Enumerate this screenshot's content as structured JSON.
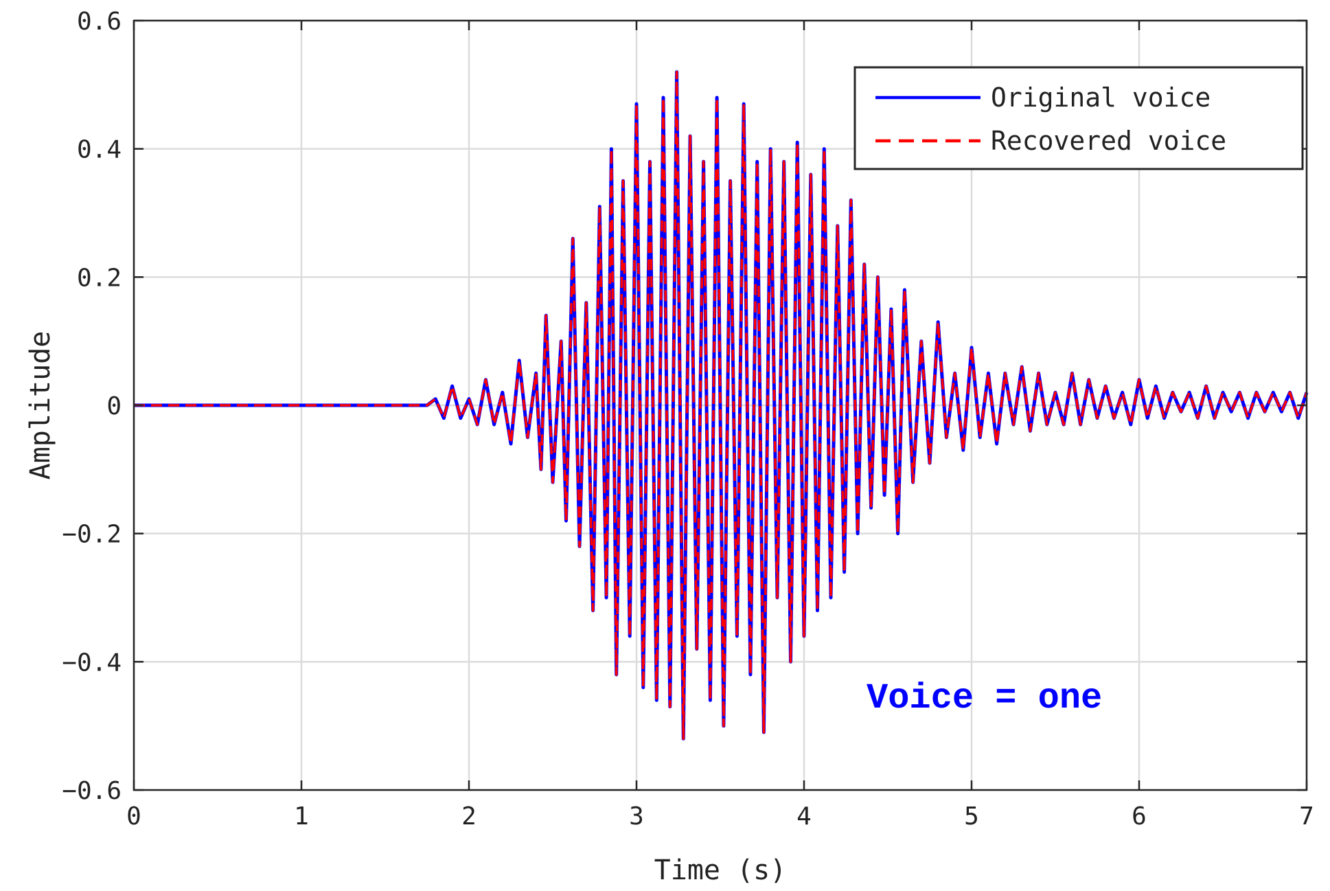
{
  "chart_data": {
    "type": "line",
    "title": "",
    "xlabel": "Time (s)",
    "ylabel": "Amplitude",
    "xlim": [
      0,
      7
    ],
    "ylim": [
      -0.6,
      0.6
    ],
    "x_ticks": [
      "0",
      "1",
      "2",
      "3",
      "4",
      "5",
      "6",
      "7"
    ],
    "y_ticks": [
      "-0.6",
      "-0.4",
      "-0.2",
      "0",
      "0.2",
      "0.4",
      "0.6"
    ],
    "grid": true,
    "legend_position": "top-right",
    "annotation": "Voice = one",
    "annotation_color": "#0000ff",
    "series": [
      {
        "name": "Original voice",
        "color": "#0000ff",
        "style": "solid",
        "x": [
          0,
          1.75,
          1.8,
          1.85,
          1.9,
          1.95,
          2.0,
          2.05,
          2.1,
          2.15,
          2.2,
          2.25,
          2.3,
          2.35,
          2.4,
          2.43,
          2.46,
          2.5,
          2.55,
          2.58,
          2.62,
          2.66,
          2.7,
          2.74,
          2.78,
          2.82,
          2.85,
          2.88,
          2.92,
          2.96,
          3.0,
          3.04,
          3.08,
          3.12,
          3.16,
          3.2,
          3.24,
          3.28,
          3.32,
          3.36,
          3.4,
          3.44,
          3.48,
          3.52,
          3.56,
          3.6,
          3.64,
          3.68,
          3.72,
          3.76,
          3.8,
          3.84,
          3.88,
          3.92,
          3.96,
          4.0,
          4.04,
          4.08,
          4.12,
          4.16,
          4.2,
          4.24,
          4.28,
          4.32,
          4.36,
          4.4,
          4.44,
          4.48,
          4.52,
          4.56,
          4.6,
          4.65,
          4.7,
          4.75,
          4.8,
          4.85,
          4.9,
          4.95,
          5.0,
          5.05,
          5.1,
          5.15,
          5.2,
          5.25,
          5.3,
          5.35,
          5.4,
          5.45,
          5.5,
          5.55,
          5.6,
          5.65,
          5.7,
          5.75,
          5.8,
          5.85,
          5.9,
          5.95,
          6.0,
          6.05,
          6.1,
          6.15,
          6.2,
          6.25,
          6.3,
          6.35,
          6.4,
          6.45,
          6.5,
          6.55,
          6.6,
          6.65,
          6.7,
          6.75,
          6.8,
          6.85,
          6.9,
          6.95,
          7.0
        ],
        "y": [
          0,
          0,
          0.01,
          -0.02,
          0.03,
          -0.02,
          0.01,
          -0.03,
          0.04,
          -0.03,
          0.02,
          -0.06,
          0.07,
          -0.05,
          0.05,
          -0.1,
          0.14,
          -0.12,
          0.1,
          -0.18,
          0.26,
          -0.22,
          0.16,
          -0.32,
          0.31,
          -0.3,
          0.4,
          -0.42,
          0.35,
          -0.36,
          0.47,
          -0.44,
          0.38,
          -0.46,
          0.48,
          -0.47,
          0.52,
          -0.52,
          0.42,
          -0.38,
          0.38,
          -0.46,
          0.48,
          -0.5,
          0.35,
          -0.36,
          0.47,
          -0.42,
          0.38,
          -0.51,
          0.4,
          -0.3,
          0.38,
          -0.4,
          0.41,
          -0.36,
          0.36,
          -0.32,
          0.4,
          -0.3,
          0.28,
          -0.26,
          0.32,
          -0.2,
          0.22,
          -0.16,
          0.2,
          -0.14,
          0.15,
          -0.2,
          0.18,
          -0.12,
          0.1,
          -0.09,
          0.13,
          -0.05,
          0.05,
          -0.07,
          0.09,
          -0.05,
          0.05,
          -0.06,
          0.05,
          -0.03,
          0.06,
          -0.04,
          0.05,
          -0.03,
          0.02,
          -0.03,
          0.05,
          -0.03,
          0.04,
          -0.02,
          0.03,
          -0.02,
          0.02,
          -0.03,
          0.04,
          -0.02,
          0.03,
          -0.02,
          0.02,
          -0.01,
          0.02,
          -0.02,
          0.03,
          -0.02,
          0.02,
          -0.01,
          0.02,
          -0.02,
          0.02,
          -0.01,
          0.02,
          -0.01,
          0.02,
          -0.02,
          0.02
        ]
      },
      {
        "name": "Recovered voice",
        "color": "#ff0000",
        "style": "dashed",
        "x": [
          0,
          1.75,
          1.8,
          1.85,
          1.9,
          1.95,
          2.0,
          2.05,
          2.1,
          2.15,
          2.2,
          2.25,
          2.3,
          2.35,
          2.4,
          2.43,
          2.46,
          2.5,
          2.55,
          2.58,
          2.62,
          2.66,
          2.7,
          2.74,
          2.78,
          2.82,
          2.85,
          2.88,
          2.92,
          2.96,
          3.0,
          3.04,
          3.08,
          3.12,
          3.16,
          3.2,
          3.24,
          3.28,
          3.32,
          3.36,
          3.4,
          3.44,
          3.48,
          3.52,
          3.56,
          3.6,
          3.64,
          3.68,
          3.72,
          3.76,
          3.8,
          3.84,
          3.88,
          3.92,
          3.96,
          4.0,
          4.04,
          4.08,
          4.12,
          4.16,
          4.2,
          4.24,
          4.28,
          4.32,
          4.36,
          4.4,
          4.44,
          4.48,
          4.52,
          4.56,
          4.6,
          4.65,
          4.7,
          4.75,
          4.8,
          4.85,
          4.9,
          4.95,
          5.0,
          5.05,
          5.1,
          5.15,
          5.2,
          5.25,
          5.3,
          5.35,
          5.4,
          5.45,
          5.5,
          5.55,
          5.6,
          5.65,
          5.7,
          5.75,
          5.8,
          5.85,
          5.9,
          5.95,
          6.0,
          6.05,
          6.1,
          6.15,
          6.2,
          6.25,
          6.3,
          6.35,
          6.4,
          6.45,
          6.5,
          6.55,
          6.6,
          6.65,
          6.7,
          6.75,
          6.8,
          6.85,
          6.9,
          6.95,
          7.0
        ],
        "y": [
          0,
          0,
          0.01,
          -0.02,
          0.03,
          -0.02,
          0.01,
          -0.03,
          0.04,
          -0.03,
          0.02,
          -0.06,
          0.07,
          -0.05,
          0.05,
          -0.1,
          0.14,
          -0.12,
          0.1,
          -0.18,
          0.26,
          -0.22,
          0.16,
          -0.32,
          0.31,
          -0.3,
          0.4,
          -0.42,
          0.35,
          -0.36,
          0.47,
          -0.44,
          0.38,
          -0.46,
          0.48,
          -0.47,
          0.52,
          -0.52,
          0.42,
          -0.38,
          0.38,
          -0.46,
          0.48,
          -0.5,
          0.35,
          -0.36,
          0.47,
          -0.42,
          0.38,
          -0.51,
          0.4,
          -0.3,
          0.38,
          -0.4,
          0.41,
          -0.36,
          0.36,
          -0.32,
          0.4,
          -0.3,
          0.28,
          -0.26,
          0.32,
          -0.2,
          0.22,
          -0.16,
          0.2,
          -0.14,
          0.15,
          -0.2,
          0.18,
          -0.12,
          0.1,
          -0.09,
          0.13,
          -0.05,
          0.05,
          -0.07,
          0.09,
          -0.05,
          0.05,
          -0.06,
          0.05,
          -0.03,
          0.06,
          -0.04,
          0.05,
          -0.03,
          0.02,
          -0.03,
          0.05,
          -0.03,
          0.04,
          -0.02,
          0.03,
          -0.02,
          0.02,
          -0.03,
          0.04,
          -0.02,
          0.03,
          -0.02,
          0.02,
          -0.01,
          0.02,
          -0.02,
          0.03,
          -0.02,
          0.02,
          -0.01,
          0.02,
          -0.02,
          0.02,
          -0.01,
          0.02,
          -0.01,
          0.02,
          -0.02,
          0.02
        ]
      }
    ]
  }
}
